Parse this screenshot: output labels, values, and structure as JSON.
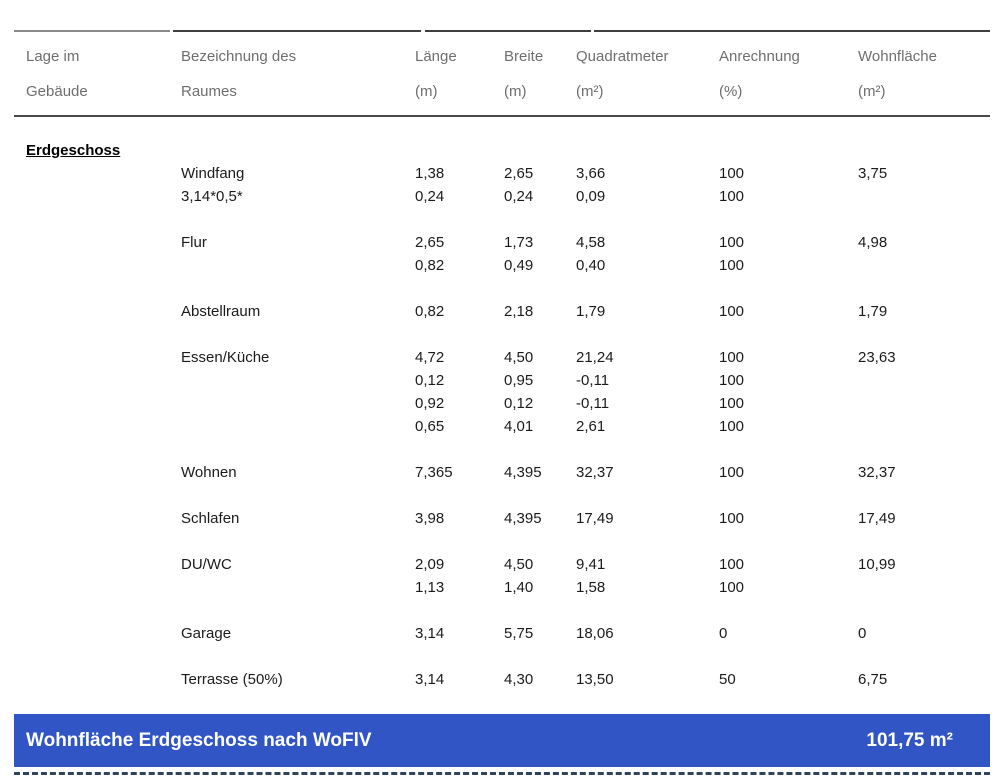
{
  "colors": {
    "accent_blue": "#3155c4",
    "header_text": "#6e6e6e",
    "body_text": "#1b1b1b"
  },
  "table": {
    "headers": [
      {
        "line1": "Lage im",
        "line2": "Gebäude"
      },
      {
        "line1": "Bezeichnung des",
        "line2": "Raumes"
      },
      {
        "line1": "Länge",
        "line2": "(m)"
      },
      {
        "line1": "Breite",
        "line2": "(m)"
      },
      {
        "line1": "Quadratmeter",
        "line2": "(m²)"
      },
      {
        "line1": "Anrechnung",
        "line2": "(%)"
      },
      {
        "line1": "Wohnfläche",
        "line2": "(m²)"
      }
    ],
    "section_label": "Erdgeschoss",
    "groups": [
      {
        "lines": [
          [
            "Windfang",
            "1,38",
            "2,65",
            "3,66",
            "100",
            "3,75"
          ],
          [
            "3,14*0,5*",
            "0,24",
            "0,24",
            "0,09",
            "100",
            ""
          ]
        ]
      },
      {
        "lines": [
          [
            "Flur",
            "2,65",
            "1,73",
            "4,58",
            "100",
            "4,98"
          ],
          [
            "",
            "0,82",
            "0,49",
            "0,40",
            "100",
            ""
          ]
        ]
      },
      {
        "lines": [
          [
            "Abstellraum",
            "0,82",
            "2,18",
            "1,79",
            "100",
            "1,79"
          ]
        ]
      },
      {
        "lines": [
          [
            "Essen/Küche",
            "4,72",
            "4,50",
            "21,24",
            "100",
            "23,63"
          ],
          [
            "",
            "0,12",
            "0,95",
            "-0,11",
            "100",
            ""
          ],
          [
            "",
            "0,92",
            "0,12",
            "-0,11",
            "100",
            ""
          ],
          [
            "",
            "0,65",
            "4,01",
            "2,61",
            "100",
            ""
          ]
        ]
      },
      {
        "lines": [
          [
            "Wohnen",
            "7,365",
            "4,395",
            "32,37",
            "100",
            "32,37"
          ]
        ]
      },
      {
        "lines": [
          [
            "Schlafen",
            "3,98",
            "4,395",
            "17,49",
            "100",
            "17,49"
          ]
        ]
      },
      {
        "lines": [
          [
            "DU/WC",
            "2,09",
            "4,50",
            "9,41",
            "100",
            "10,99"
          ],
          [
            "",
            "1,13",
            "1,40",
            "1,58",
            "100",
            ""
          ]
        ]
      },
      {
        "lines": [
          [
            "Garage",
            "3,14",
            "5,75",
            "18,06",
            "0",
            "0"
          ]
        ]
      },
      {
        "lines": [
          [
            "Terrasse (50%)",
            "3,14",
            "4,30",
            "13,50",
            "50",
            "6,75"
          ]
        ]
      }
    ]
  },
  "footer": {
    "label": "Wohnfläche Erdgeschoss nach WoFlV",
    "value": "101,75 m²"
  }
}
